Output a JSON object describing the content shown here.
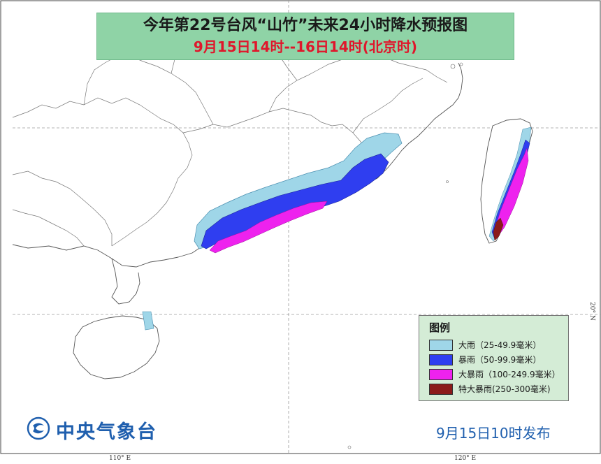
{
  "title": {
    "main": "今年第22号台风“山竹”未来24小时降水预报图",
    "time_range": "9月15日14时--16日14时(北京时)"
  },
  "legend": {
    "title": "图例",
    "items": [
      {
        "label": "大雨（25-49.9毫米）",
        "color": "#9fd6e8"
      },
      {
        "label": "暴雨（50-99.9毫米）",
        "color": "#2f3ef0"
      },
      {
        "label": "大暴雨（100-249.9毫米）",
        "color": "#ee22ee"
      },
      {
        "label": "特大暴雨(250-300毫米)",
        "color": "#8b1a1a"
      }
    ]
  },
  "axes": {
    "lon_110": "110° E",
    "lon_120": "120° E",
    "lat_20": "20° N"
  },
  "issuer": {
    "name": "中央气象台",
    "issue_time": "9月15日10时发布"
  },
  "colors": {
    "title_bg": "#8fd3a6",
    "title_red": "#e0162b",
    "legend_bg": "#d4ecd6",
    "brand_blue": "#1f5fae"
  }
}
